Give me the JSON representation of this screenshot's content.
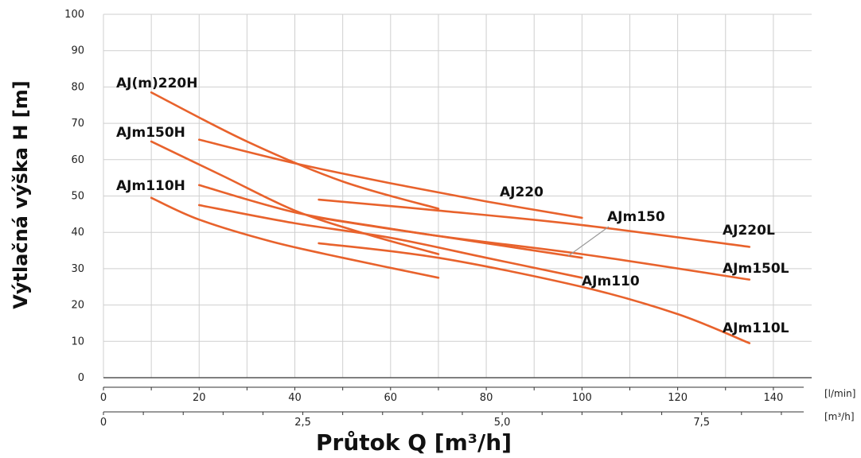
{
  "chart_data": {
    "type": "line",
    "ylabel": "Výtlačná výška H [m]",
    "xlabel": "Průtok Q [m³/h]",
    "ylim": [
      0,
      100
    ],
    "xlim_lmin": [
      0,
      148
    ],
    "y_ticks": [
      "0",
      "10",
      "20",
      "30",
      "40",
      "50",
      "60",
      "70",
      "80",
      "90",
      "100"
    ],
    "x_ticks_lmin": [
      "0",
      "20",
      "40",
      "60",
      "80",
      "100",
      "120",
      "140"
    ],
    "x_ticks_m3h": [
      "0",
      "2,5",
      "5,0",
      "7,5"
    ],
    "unit_lmin": "[l/min]",
    "unit_m3h": "[m³/h]",
    "grid": true,
    "series": [
      {
        "name": "AJ(m)220H",
        "x": [
          10,
          30,
          50,
          70
        ],
        "y": [
          78.5,
          65,
          54,
          46.5
        ]
      },
      {
        "name": "AJm150H",
        "x": [
          10,
          25,
          40,
          55,
          70
        ],
        "y": [
          65,
          55.5,
          46,
          39.5,
          34
        ]
      },
      {
        "name": "AJm110H",
        "x": [
          10,
          20,
          35,
          50,
          70
        ],
        "y": [
          49.5,
          43.5,
          37.5,
          33,
          27.5
        ]
      },
      {
        "name": "AJ220",
        "x": [
          20,
          40,
          60,
          80,
          100
        ],
        "y": [
          65.5,
          59,
          53.5,
          48.5,
          44
        ]
      },
      {
        "name": "AJm150",
        "x": [
          20,
          40,
          60,
          80,
          100
        ],
        "y": [
          53,
          45.5,
          41,
          37,
          33
        ]
      },
      {
        "name": "AJm110",
        "x": [
          20,
          40,
          60,
          80,
          100
        ],
        "y": [
          47.5,
          42.5,
          38.5,
          33,
          27.5
        ]
      },
      {
        "name": "AJ220L",
        "x": [
          45,
          70,
          100,
          135
        ],
        "y": [
          49,
          46,
          42,
          36
        ]
      },
      {
        "name": "AJm150L",
        "x": [
          45,
          70,
          100,
          135
        ],
        "y": [
          44,
          39,
          34,
          27
        ]
      },
      {
        "name": "AJm110L",
        "x": [
          45,
          70,
          100,
          120,
          135
        ],
        "y": [
          37,
          33,
          25,
          17.5,
          9.5
        ]
      }
    ],
    "series_label_color": "#111111",
    "line_color": "#e8622c",
    "callout": {
      "text": "AJm150",
      "points_to_series": "AJm150L"
    }
  }
}
